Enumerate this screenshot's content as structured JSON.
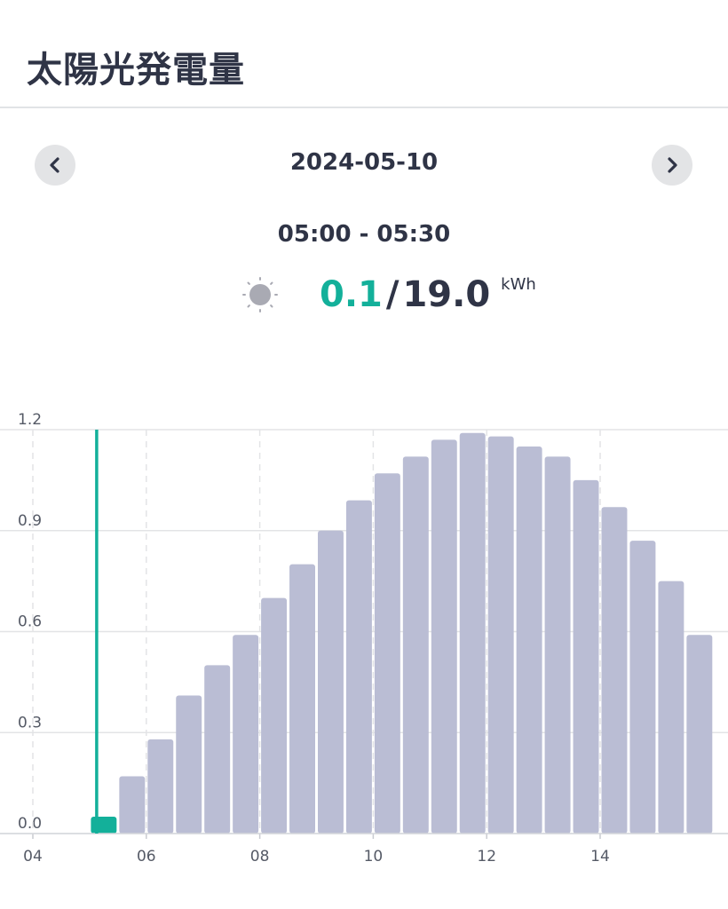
{
  "header": {
    "title": "太陽光発電量"
  },
  "nav": {
    "date": "2024-05-10",
    "prev_icon": "chevron-left-icon",
    "next_icon": "chevron-right-icon"
  },
  "selection": {
    "time_range": "05:00 - 05:30",
    "weather_icon": "sun-icon",
    "current_value": "0.1",
    "separator": "/",
    "total_value": "19.0",
    "unit": "kWh"
  },
  "colors": {
    "accent": "#13b09a",
    "bar": "#babdd4",
    "text": "#2f3446"
  },
  "chart_data": {
    "type": "bar",
    "x_tick_labels": [
      "04",
      "06",
      "08",
      "10",
      "12",
      "14"
    ],
    "y_tick_labels": [
      "0.0",
      "0.3",
      "0.6",
      "0.9",
      "1.2"
    ],
    "ylim": [
      0,
      1.2
    ],
    "xlim_hours": [
      4,
      16
    ],
    "bar_width_hours": 0.5,
    "selected_index": 0,
    "grid": true,
    "bars": [
      {
        "start": 5.0,
        "value": 0.05
      },
      {
        "start": 5.5,
        "value": 0.17
      },
      {
        "start": 6.0,
        "value": 0.28
      },
      {
        "start": 6.5,
        "value": 0.41
      },
      {
        "start": 7.0,
        "value": 0.5
      },
      {
        "start": 7.5,
        "value": 0.59
      },
      {
        "start": 8.0,
        "value": 0.7
      },
      {
        "start": 8.5,
        "value": 0.8
      },
      {
        "start": 9.0,
        "value": 0.9
      },
      {
        "start": 9.5,
        "value": 0.99
      },
      {
        "start": 10.0,
        "value": 1.07
      },
      {
        "start": 10.5,
        "value": 1.12
      },
      {
        "start": 11.0,
        "value": 1.17
      },
      {
        "start": 11.5,
        "value": 1.19
      },
      {
        "start": 12.0,
        "value": 1.18
      },
      {
        "start": 12.5,
        "value": 1.15
      },
      {
        "start": 13.0,
        "value": 1.12
      },
      {
        "start": 13.5,
        "value": 1.05
      },
      {
        "start": 14.0,
        "value": 0.97
      },
      {
        "start": 14.5,
        "value": 0.87
      },
      {
        "start": 15.0,
        "value": 0.75
      },
      {
        "start": 15.5,
        "value": 0.59
      }
    ]
  }
}
